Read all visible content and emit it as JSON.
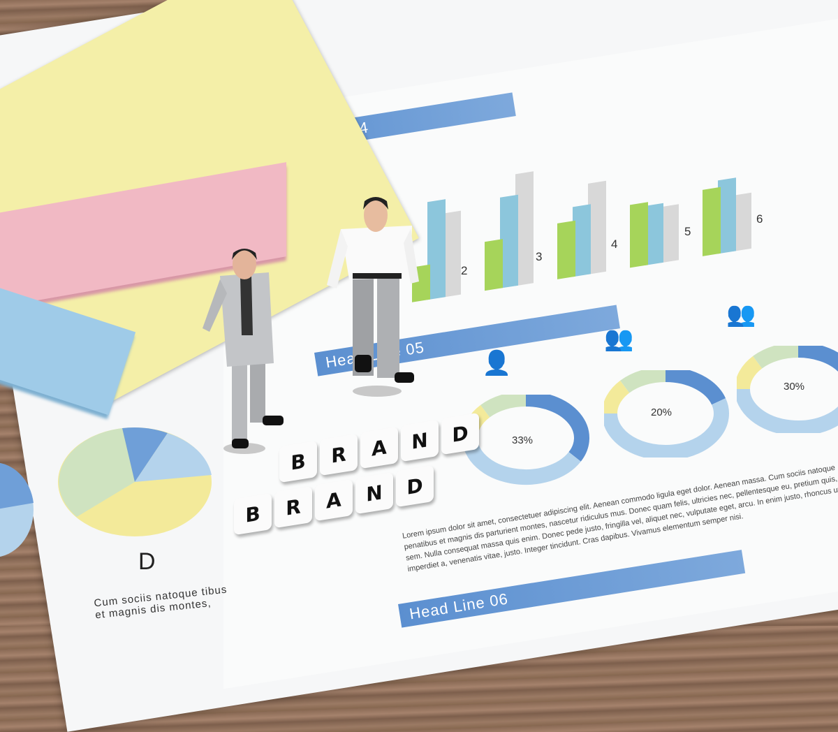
{
  "headlines": [
    "Head Line 04",
    "Head Line 05",
    "Head Line 06"
  ],
  "bar_labels": [
    "2",
    "3",
    "4",
    "5",
    "6"
  ],
  "donuts": [
    {
      "label": "33%",
      "value": 33
    },
    {
      "label": "20%",
      "value": 20
    },
    {
      "label": "30%",
      "value": 30
    }
  ],
  "pie_label": "D",
  "pie_caption": "Cum sociis natoque tibus et magnis dis montes,",
  "paragraph": "Lorem ipsum dolor sit amet, consectetuer adipiscing elit. Aenean commodo ligula eget dolor. Aenean massa. Cum sociis natoque penatibus et magnis dis parturient montes, nascetur ridiculus mus. Donec quam felis, ultricies nec, pellentesque eu, pretium quis, sem. Nulla consequat massa quis enim. Donec pede justo, fringilla vel, aliquet nec, vulputate eget, arcu. In enim justo, rhoncus ut, imperdiet a, venenatis vitae, justo. Integer tincidunt. Cras dapibus. Vivamus elementum semper nisi.",
  "blocks": [
    [
      "B",
      "R",
      "A",
      "N",
      "D"
    ],
    [
      "B",
      "R",
      "A",
      "N",
      "D"
    ]
  ],
  "colors": {
    "blue": "#5b8fd0",
    "green": "#a6d45a",
    "teal": "#8cc6dc",
    "gray": "#d8d8d8",
    "yellow": "#f4efa8",
    "pink": "#f1b9c4",
    "lightblue": "#9fcbe8"
  }
}
